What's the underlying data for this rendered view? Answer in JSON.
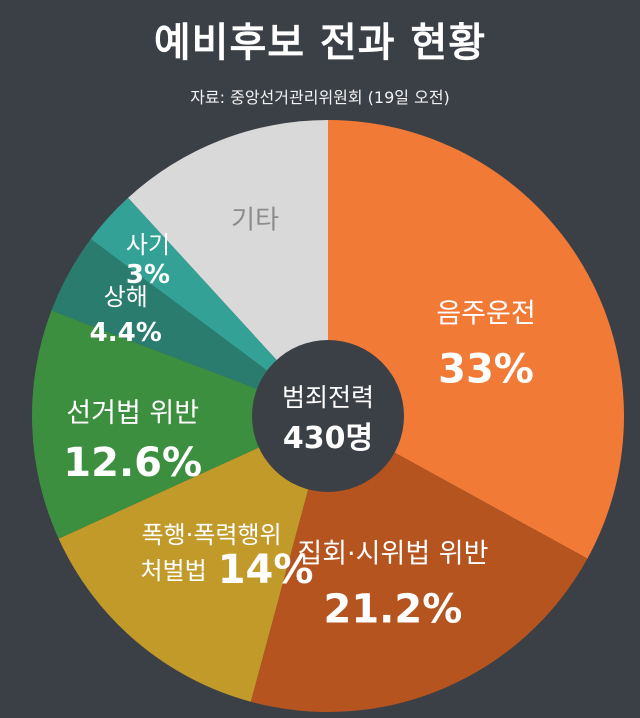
{
  "header": {
    "title": "예비후보 전과 현황",
    "source": "자료: 중앙선거관리위원회 (19일 오전)"
  },
  "center": {
    "label": "범죄전력",
    "value": "430명"
  },
  "chart_data": {
    "type": "pie",
    "title": "예비후보 전과 현황",
    "slices": [
      {
        "name": "음주운전",
        "value": 33,
        "value_label": "33%",
        "color": "#f07a36"
      },
      {
        "name": "집회·시위법 위반",
        "value": 21.2,
        "value_label": "21.2%",
        "color": "#b5541f"
      },
      {
        "name": "폭행·폭력행위 처벌법",
        "name_lines": [
          "폭행·폭력행위",
          "처벌법"
        ],
        "value": 14,
        "value_label": "14%",
        "color": "#c19a2a"
      },
      {
        "name": "선거법 위반",
        "value": 12.6,
        "value_label": "12.6%",
        "color": "#3d8f40"
      },
      {
        "name": "상해",
        "value": 4.4,
        "value_label": "4.4%",
        "color": "#2a7c6f"
      },
      {
        "name": "사기",
        "value": 3,
        "value_label": "3%",
        "color": "#33a196"
      },
      {
        "name": "기타",
        "value": 11.8,
        "value_label": "",
        "color": "#d9d9d9"
      }
    ]
  }
}
